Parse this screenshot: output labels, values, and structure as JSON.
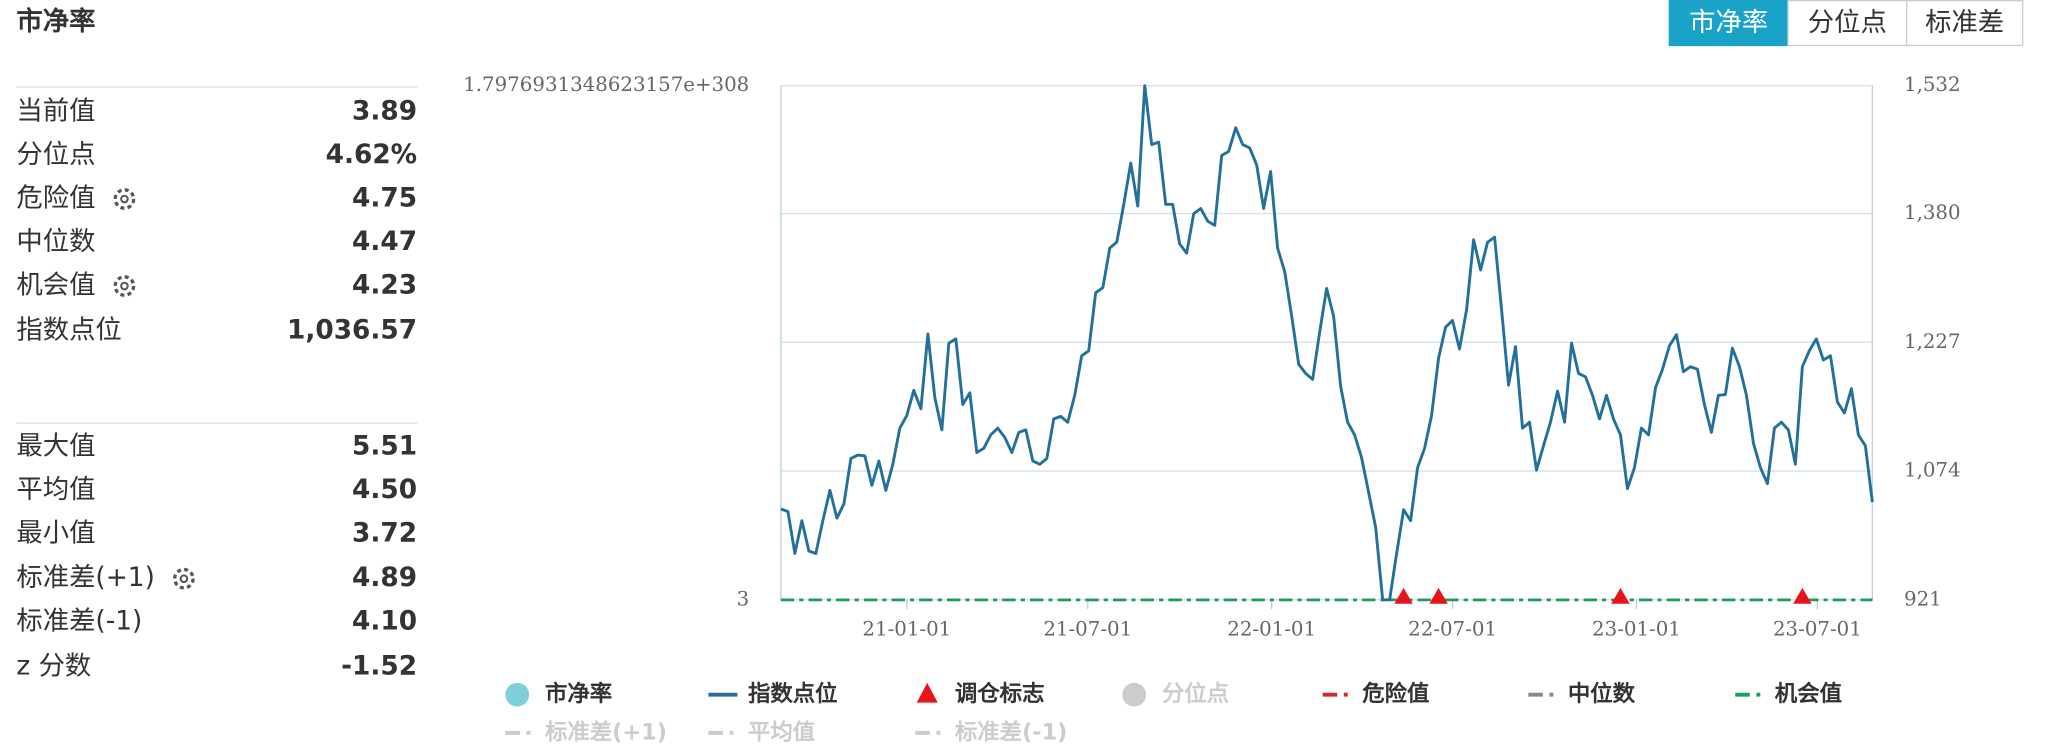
{
  "title": "市净率",
  "tabs": [
    {
      "label": "市净率",
      "active": true
    },
    {
      "label": "分位点",
      "active": false
    },
    {
      "label": "标准差",
      "active": false
    }
  ],
  "stats": [
    [
      {
        "label": "当前值",
        "value": "3.89"
      },
      {
        "label": "分位点",
        "value": "4.62%"
      },
      {
        "label": "危险值",
        "value": "4.75",
        "settings": true
      },
      {
        "label": "中位数",
        "value": "4.47"
      },
      {
        "label": "机会值",
        "value": "4.23",
        "settings": true
      },
      {
        "label": "指数点位",
        "value": "1,036.57"
      }
    ],
    [
      {
        "label": "最大值",
        "value": "5.51"
      },
      {
        "label": "平均值",
        "value": "4.50"
      },
      {
        "label": "最小值",
        "value": "3.72"
      },
      {
        "label": "标准差(+1)",
        "value": "4.89",
        "settings": true
      },
      {
        "label": "标准差(-1)",
        "value": "4.10"
      },
      {
        "label": "z 分数",
        "value": "-1.52"
      }
    ]
  ],
  "chart_data": {
    "type": "line",
    "x": [
      "20-08-28",
      "20-09-04",
      "20-09-11",
      "20-09-18",
      "20-09-25",
      "20-10-02",
      "20-10-09",
      "20-10-16",
      "20-10-23",
      "20-10-30",
      "20-11-06",
      "20-11-13",
      "20-11-20",
      "20-11-27",
      "20-12-04",
      "20-12-11",
      "20-12-18",
      "20-12-25",
      "21-01-01",
      "21-01-08",
      "21-01-15",
      "21-01-22",
      "21-01-29",
      "21-02-05",
      "21-02-12",
      "21-02-19",
      "21-02-26",
      "21-03-05",
      "21-03-12",
      "21-03-19",
      "21-03-26",
      "21-04-02",
      "21-04-09",
      "21-04-16",
      "21-04-23",
      "21-04-30",
      "21-05-07",
      "21-05-14",
      "21-05-21",
      "21-05-28",
      "21-06-04",
      "21-06-11",
      "21-06-18",
      "21-06-25",
      "21-07-02",
      "21-07-09",
      "21-07-16",
      "21-07-23",
      "21-07-30",
      "21-08-06",
      "21-08-13",
      "21-08-20",
      "21-08-27",
      "21-09-03",
      "21-09-10",
      "21-09-17",
      "21-09-24",
      "21-10-01",
      "21-10-08",
      "21-10-15",
      "21-10-22",
      "21-10-29",
      "21-11-05",
      "21-11-12",
      "21-11-19",
      "21-11-26",
      "21-12-03",
      "21-12-10",
      "21-12-17",
      "21-12-24",
      "21-12-31",
      "22-01-07",
      "22-01-14",
      "22-01-21",
      "22-01-28",
      "22-02-04",
      "22-02-11",
      "22-02-18",
      "22-02-25",
      "22-03-04",
      "22-03-11",
      "22-03-18",
      "22-03-25",
      "22-04-01",
      "22-04-08",
      "22-04-15",
      "22-04-22",
      "22-04-29",
      "22-05-06",
      "22-05-13",
      "22-05-20",
      "22-05-27",
      "22-06-03",
      "22-06-10",
      "22-06-17",
      "22-06-24",
      "22-07-01",
      "22-07-08",
      "22-07-15",
      "22-07-22",
      "22-07-29",
      "22-08-05",
      "22-08-12",
      "22-08-19",
      "22-08-26",
      "22-09-02",
      "22-09-09",
      "22-09-16",
      "22-09-23",
      "22-09-30",
      "22-10-07",
      "22-10-14",
      "22-10-21",
      "22-10-28",
      "22-11-04",
      "22-11-11",
      "22-11-18",
      "22-11-25",
      "22-12-02",
      "22-12-09",
      "22-12-16",
      "22-12-23",
      "22-12-30",
      "23-01-06",
      "23-01-13",
      "23-01-20",
      "23-01-27",
      "23-02-03",
      "23-02-10",
      "23-02-17",
      "23-02-24",
      "23-03-03",
      "23-03-10",
      "23-03-17",
      "23-03-24",
      "23-03-31",
      "23-04-07",
      "23-04-14",
      "23-04-21",
      "23-04-28",
      "23-05-05",
      "23-05-12",
      "23-05-19",
      "23-05-26",
      "23-06-02",
      "23-06-09",
      "23-06-16",
      "23-06-23",
      "23-06-30",
      "23-07-07",
      "23-07-14",
      "23-07-21",
      "23-07-28",
      "23-08-04",
      "23-08-11",
      "23-08-18",
      "23-08-25"
    ],
    "xlim": [
      "20-08-28",
      "23-08-25"
    ],
    "xticks": [
      "21-01-01",
      "21-07-01",
      "22-01-01",
      "22-07-01",
      "23-01-01",
      "23-07-01"
    ],
    "ylim": [
      3,
      1.7976931348623157e+308
    ],
    "yticks": [
      3,
      1.7976931348623157e+308
    ],
    "y2lim": [
      921,
      1532
    ],
    "y2ticks": [
      921,
      {
        "value": 1074,
        "label": "1,074"
      },
      {
        "value": 1227,
        "label": "1,227"
      },
      {
        "value": 1380,
        "label": "1,380"
      },
      {
        "value": 1532,
        "label": "1,532"
      }
    ],
    "grid": true,
    "series": [
      {
        "legend": 1,
        "color": "#23719a",
        "axis": "y2",
        "values": [
          1029,
          1026,
          976,
          1015,
          979,
          976,
          1015,
          1051,
          1018,
          1035,
          1089,
          1093,
          1092,
          1057,
          1086,
          1051,
          1082,
          1125,
          1140,
          1170,
          1148,
          1237,
          1161,
          1123,
          1226,
          1231,
          1153,
          1167,
          1096,
          1101,
          1117,
          1125,
          1114,
          1096,
          1120,
          1123,
          1086,
          1082,
          1089,
          1136,
          1139,
          1132,
          1164,
          1211,
          1217,
          1286,
          1292,
          1339,
          1346,
          1391,
          1440,
          1389,
          1532,
          1462,
          1465,
          1391,
          1391,
          1344,
          1333,
          1380,
          1386,
          1371,
          1366,
          1449,
          1454,
          1482,
          1462,
          1458,
          1438,
          1386,
          1430,
          1339,
          1311,
          1258,
          1201,
          1190,
          1183,
          1239,
          1291,
          1258,
          1175,
          1132,
          1117,
          1090,
          1049,
          1007,
          921,
          921,
          976,
          1028,
          1015,
          1078,
          1101,
          1140,
          1208,
          1245,
          1253,
          1219,
          1266,
          1349,
          1313,
          1346,
          1352,
          1266,
          1176,
          1222,
          1125,
          1132,
          1075,
          1104,
          1132,
          1169,
          1132,
          1226,
          1190,
          1186,
          1164,
          1136,
          1164,
          1136,
          1117,
          1053,
          1078,
          1125,
          1117,
          1173,
          1195,
          1223,
          1236,
          1192,
          1198,
          1195,
          1153,
          1120,
          1164,
          1165,
          1220,
          1198,
          1164,
          1107,
          1078,
          1059,
          1125,
          1132,
          1123,
          1082,
          1198,
          1217,
          1231,
          1206,
          1211,
          1156,
          1143,
          1172,
          1117,
          1104,
          1037
        ]
      }
    ],
    "markers": {
      "legend": 2,
      "color": "#e8141b",
      "x": [
        "22-05-13",
        "22-06-17",
        "22-12-16",
        "23-06-16"
      ]
    },
    "reference_lines": [
      {
        "legend": 4,
        "color": "#d9262b",
        "value": 4.75
      },
      {
        "legend": 5,
        "color": "#888888",
        "value": 4.47
      },
      {
        "legend": 6,
        "color": "#1a9e5c",
        "value": 4.23
      }
    ],
    "legend": [
      {
        "name": "市净率",
        "symbol": "circle",
        "color": "#7ecfd9",
        "enabled": true
      },
      {
        "name": "指数点位",
        "symbol": "line",
        "color": "#23719a",
        "enabled": true
      },
      {
        "name": "调仓标志",
        "symbol": "triangle",
        "color": "#e8141b",
        "enabled": true
      },
      {
        "name": "分位点",
        "symbol": "circle",
        "color": "#cccccc",
        "enabled": false
      },
      {
        "name": "危险值",
        "symbol": "dash",
        "color": "#d9262b",
        "enabled": true
      },
      {
        "name": "中位数",
        "symbol": "dash",
        "color": "#888888",
        "enabled": true
      },
      {
        "name": "机会值",
        "symbol": "dash",
        "color": "#1a9e5c",
        "enabled": true
      },
      {
        "name": "标准差(+1)",
        "symbol": "dash",
        "color": "#cccccc",
        "enabled": false
      },
      {
        "name": "平均值",
        "symbol": "dash",
        "color": "#cccccc",
        "enabled": false
      },
      {
        "name": "标准差(-1)",
        "symbol": "dash",
        "color": "#cccccc",
        "enabled": false
      }
    ]
  }
}
